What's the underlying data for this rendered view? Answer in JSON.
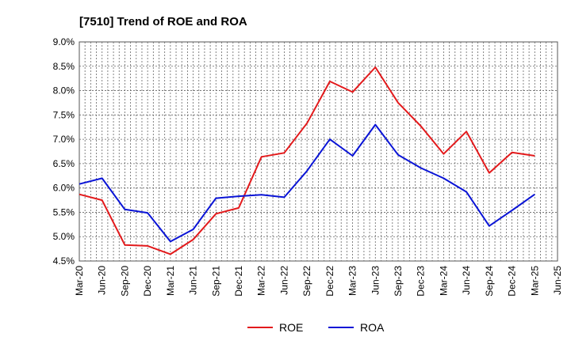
{
  "chart_data": {
    "type": "line",
    "title": "[7510]  Trend of ROE and ROA",
    "xlabel": "",
    "ylabel": "",
    "x": [
      "Mar-20",
      "Jun-20",
      "Sep-20",
      "Dec-20",
      "Mar-21",
      "Jun-21",
      "Sep-21",
      "Dec-21",
      "Mar-22",
      "Jun-22",
      "Sep-22",
      "Dec-22",
      "Mar-23",
      "Jun-23",
      "Sep-23",
      "Dec-23",
      "Mar-24",
      "Jun-24",
      "Sep-24",
      "Dec-24",
      "Mar-25",
      "Jun-25"
    ],
    "y_ticks": [
      "9.0%",
      "8.5%",
      "8.0%",
      "7.5%",
      "7.0%",
      "6.5%",
      "6.0%",
      "5.5%",
      "5.0%",
      "4.5%"
    ],
    "ylim": [
      4.5,
      9.0
    ],
    "grid": true,
    "legend": "bottom",
    "series": [
      {
        "name": "ROE",
        "color": "#e31a1c",
        "values": [
          5.87,
          5.75,
          4.83,
          4.81,
          4.64,
          4.94,
          5.47,
          5.59,
          6.64,
          6.72,
          7.33,
          8.19,
          7.97,
          8.48,
          7.75,
          7.27,
          6.7,
          7.16,
          6.31,
          6.73,
          6.66,
          null
        ]
      },
      {
        "name": "ROA",
        "color": "#0a14d6",
        "values": [
          6.08,
          6.2,
          5.56,
          5.49,
          4.9,
          5.15,
          5.79,
          5.83,
          5.86,
          5.81,
          6.35,
          7.0,
          6.66,
          7.3,
          6.68,
          6.41,
          6.2,
          5.92,
          5.22,
          5.54,
          5.87,
          null
        ]
      }
    ]
  }
}
